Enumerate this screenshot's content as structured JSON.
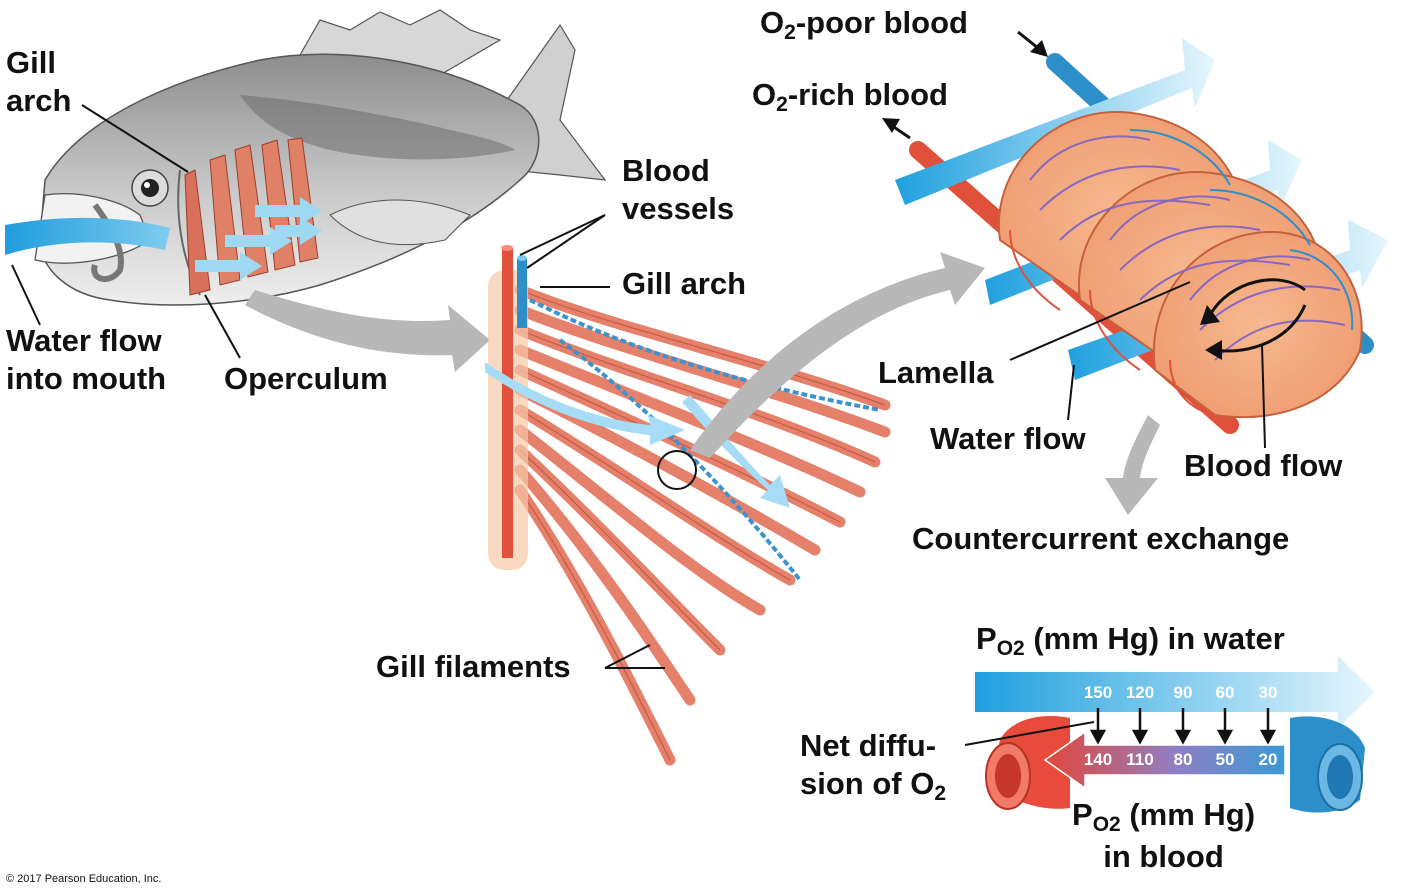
{
  "labels": {
    "gill_arch_fish_1": "Gill",
    "gill_arch_fish_2": "arch",
    "water_flow_mouth_1": "Water flow",
    "water_flow_mouth_2": "into mouth",
    "operculum": "Operculum",
    "blood_vessels_1": "Blood",
    "blood_vessels_2": "vessels",
    "gill_arch_detail": "Gill arch",
    "gill_filaments": "Gill filaments",
    "o2_poor_prefix": "O",
    "o2_poor_sub": "2",
    "o2_poor_suffix": "-poor blood",
    "o2_rich_prefix": "O",
    "o2_rich_sub": "2",
    "o2_rich_suffix": "-rich blood",
    "lamella": "Lamella",
    "water_flow": "Water flow",
    "blood_flow": "Blood flow",
    "countercurrent": "Countercurrent exchange",
    "po2_water_p": "P",
    "po2_water_sub": "O2",
    "po2_water_rest": " (mm Hg) in water",
    "po2_blood_p": "P",
    "po2_blood_sub": "O2",
    "po2_blood_rest": " (mm Hg)",
    "po2_blood_line2": "in blood",
    "net_diff_1": "Net diffu-",
    "net_diff_2_prefix": "sion of O",
    "net_diff_2_sub": "2"
  },
  "po2_water": [
    "150",
    "120",
    "90",
    "60",
    "30"
  ],
  "po2_blood": [
    "140",
    "110",
    "80",
    "50",
    "20"
  ],
  "copyright": "© 2017 Pearson Education, Inc.",
  "colors": {
    "water_blue": "#2aa6e0",
    "water_light": "#bfe6f8",
    "blood_red": "#e8533a",
    "blood_blue": "#2d8fc9",
    "filament": "#e8826c",
    "arrow_gray": "#b5b5b5"
  }
}
